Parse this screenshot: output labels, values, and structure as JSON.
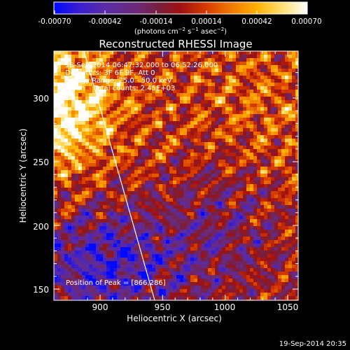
{
  "colorbar": {
    "tick_labels": [
      "-0.00070",
      "-0.00042",
      "-0.00014",
      "0.00014",
      "0.00042",
      "0.00070"
    ],
    "units_prefix": "(photons cm",
    "units_exp1": "−2",
    "units_mid": " s",
    "units_exp2": "−1",
    "units_mid2": " asec",
    "units_exp3": "−2",
    "units_suffix": ")",
    "colors": [
      "#0008ff",
      "#3a1fd0",
      "#5a2aa8",
      "#6a2a7a",
      "#7a1e3a",
      "#a01010",
      "#d83a00",
      "#f07a00",
      "#ffb000",
      "#ffe070",
      "#ffffff"
    ]
  },
  "plot": {
    "title": "Reconstructed RHESSI Image",
    "info_line1": "18-Sep-2014 06:47:32.000 to 06:52:26.000",
    "info_line2": "Detectors: 3F 6F 9F, Att 0",
    "info_line3": "Energy Range: 25.0 - 50.0 keV",
    "info_line4": "Clean    Total counts: 2.45E+03",
    "peak_label": "Position of Peak = [866,286]",
    "xlabel": "Heliocentric X (arcsec)",
    "ylabel": "Heliocentric Y (arcsec)",
    "xticks": [
      "900",
      "950",
      "1000",
      "1050"
    ],
    "yticks": [
      "150",
      "200",
      "250",
      "300"
    ]
  },
  "footer": {
    "timestamp": "19-Sep-2014 20:35"
  }
}
